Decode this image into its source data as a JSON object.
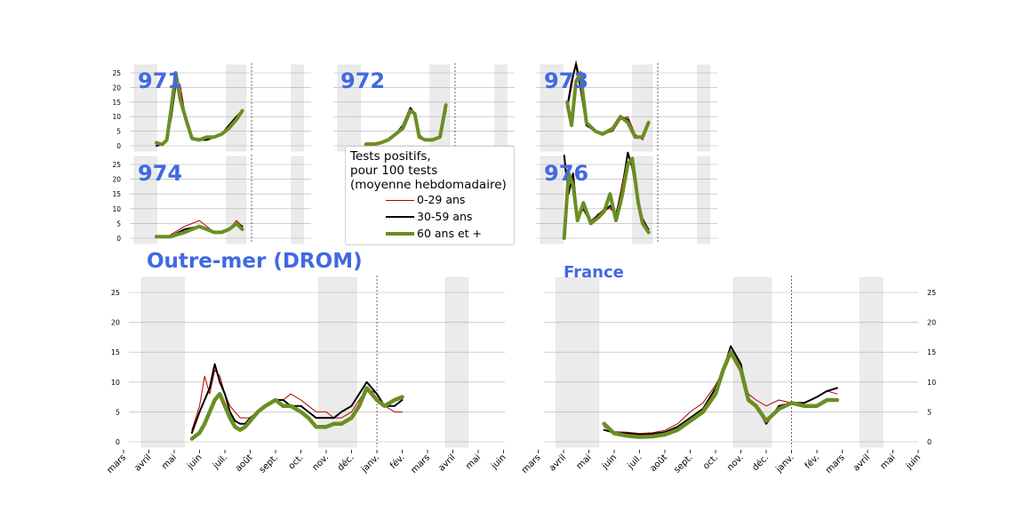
{
  "legend": {
    "title_lines": [
      "Tests positifs,",
      "pour 100 tests",
      "(moyenne hebdomadaire)"
    ],
    "entries": [
      "0-29 ans",
      "30-59 ans",
      "60 ans et +"
    ]
  },
  "colors": {
    "young": "#b00000",
    "mid": "#000000",
    "old": "#6b8e23",
    "label": "#4169e1",
    "shade": "#ebebeb",
    "grid": "#b0b0b0"
  },
  "chart_data": [
    {
      "type": "line",
      "title": "971",
      "ylim": [
        0,
        27
      ],
      "yticks": [
        0,
        5,
        10,
        15,
        20,
        25
      ],
      "series": [
        {
          "name": "0-29 ans",
          "x": [
            5.6,
            6,
            6.3,
            6.6,
            6.9,
            7.2,
            7.6,
            8,
            8.5,
            9,
            9.5,
            10,
            10.5,
            11,
            11.4
          ],
          "values": [
            0,
            0.5,
            3,
            9,
            22,
            21,
            9,
            3,
            2,
            3,
            3,
            4,
            7,
            9,
            12
          ]
        },
        {
          "name": "30-59 ans",
          "x": [
            5.6,
            6,
            6.3,
            6.6,
            6.9,
            7.2,
            7.6,
            8,
            8.5,
            9,
            9.5,
            10,
            10.5,
            11,
            11.4
          ],
          "values": [
            0,
            0.5,
            2,
            10,
            21,
            18,
            8,
            2.5,
            2,
            2,
            3,
            4,
            7,
            10,
            12
          ]
        },
        {
          "name": "60 ans et +",
          "x": [
            5.6,
            6,
            6.3,
            6.6,
            6.9,
            7.2,
            7.6,
            8,
            8.5,
            9,
            9.5,
            10,
            10.5,
            11,
            11.4
          ],
          "values": [
            1,
            0.5,
            2,
            13,
            25,
            16,
            9,
            2.5,
            2,
            3,
            3,
            4,
            6,
            9,
            12
          ]
        }
      ]
    },
    {
      "type": "line",
      "title": "972",
      "ylim": [
        0,
        27
      ],
      "yticks": [
        0,
        5,
        10,
        15,
        20,
        25
      ],
      "series": [
        {
          "name": "0-29 ans",
          "x": [
            6,
            6.5,
            7,
            7.5,
            8,
            8.5,
            9,
            9.3,
            9.6,
            10,
            10.5,
            11,
            11.4
          ],
          "values": [
            1,
            1,
            1,
            2,
            4,
            7,
            12,
            11,
            4,
            2,
            2,
            3,
            13
          ]
        },
        {
          "name": "30-59 ans",
          "x": [
            6,
            6.5,
            7,
            7.5,
            8,
            8.5,
            9,
            9.3,
            9.6,
            10,
            10.5,
            11,
            11.4
          ],
          "values": [
            0.5,
            0.5,
            1,
            2,
            4,
            7,
            13,
            11,
            3,
            2,
            2,
            3,
            12
          ]
        },
        {
          "name": "60 ans et +",
          "x": [
            6,
            6.5,
            7,
            7.5,
            8,
            8.5,
            9,
            9.3,
            9.6,
            10,
            10.5,
            11,
            11.4
          ],
          "values": [
            0.5,
            0.5,
            1,
            2,
            4,
            6,
            12,
            11,
            3,
            2,
            2,
            3,
            14
          ]
        }
      ]
    },
    {
      "type": "line",
      "title": "973",
      "ylim": [
        0,
        27
      ],
      "yticks": [
        0,
        5,
        10,
        15,
        20,
        25
      ],
      "series": [
        {
          "name": "0-29 ans",
          "x": [
            5.9,
            6.2,
            6.5,
            6.8,
            7.2,
            7.8,
            8.3,
            9,
            9.5,
            10,
            10.5,
            11,
            11.4
          ],
          "values": [
            12,
            20,
            29,
            22,
            8,
            5,
            4,
            5,
            9,
            10,
            4,
            2,
            8
          ]
        },
        {
          "name": "30-59 ans",
          "x": [
            5.9,
            6.2,
            6.5,
            6.8,
            7.2,
            7.8,
            8.3,
            9,
            9.5,
            10,
            10.5,
            11,
            11.4
          ],
          "values": [
            13,
            22,
            28,
            20,
            7,
            5,
            4,
            6,
            10,
            9,
            3,
            3,
            8
          ]
        },
        {
          "name": "60 ans et +",
          "x": [
            5.9,
            6.2,
            6.5,
            6.8,
            7.2,
            7.8,
            8.3,
            9,
            9.5,
            10,
            10.5,
            11,
            11.4
          ],
          "values": [
            15,
            7,
            22,
            25,
            8,
            5,
            4,
            6,
            10,
            8,
            3,
            3,
            8
          ]
        }
      ]
    },
    {
      "type": "line",
      "title": "974",
      "ylim": [
        0,
        27
      ],
      "yticks": [
        0,
        5,
        10,
        15,
        20,
        25
      ],
      "series": [
        {
          "name": "0-29 ans",
          "x": [
            5.6,
            6.5,
            7.5,
            8.5,
            9,
            9.5,
            10,
            10.5,
            11,
            11.4
          ],
          "values": [
            0.5,
            1,
            4,
            6,
            4,
            2,
            2,
            3,
            6,
            4
          ]
        },
        {
          "name": "30-59 ans",
          "x": [
            5.6,
            6.5,
            7.5,
            8.5,
            9,
            9.5,
            10,
            10.5,
            11,
            11.4
          ],
          "values": [
            0.5,
            0.5,
            3,
            4,
            3,
            2,
            2,
            3,
            5,
            4
          ]
        },
        {
          "name": "60 ans et +",
          "x": [
            5.6,
            6.5,
            7.5,
            8.5,
            9,
            9.5,
            10,
            10.5,
            11,
            11.4
          ],
          "values": [
            0.5,
            0.5,
            2,
            4,
            3,
            2,
            2,
            3,
            5,
            3
          ]
        }
      ]
    },
    {
      "type": "line",
      "title": "976",
      "ylim": [
        0,
        27
      ],
      "yticks": [
        0,
        5,
        10,
        15,
        20,
        25
      ],
      "series": [
        {
          "name": "0-29 ans",
          "x": [
            5.7,
            6,
            6.3,
            6.6,
            7,
            7.5,
            8,
            8.4,
            8.8,
            9.2,
            9.6,
            10,
            10.3,
            10.7,
            11,
            11.4
          ],
          "values": [
            25,
            15,
            20,
            8,
            10,
            6,
            8,
            10,
            10,
            8,
            18,
            28,
            25,
            14,
            7,
            3
          ]
        },
        {
          "name": "30-59 ans",
          "x": [
            5.7,
            6,
            6.3,
            6.6,
            7,
            7.5,
            8,
            8.4,
            8.8,
            9.2,
            9.6,
            10,
            10.3,
            10.7,
            11,
            11.4
          ],
          "values": [
            28,
            15,
            22,
            7,
            10,
            5,
            8,
            9,
            11,
            8,
            16,
            29,
            24,
            12,
            6,
            3
          ]
        },
        {
          "name": "60 ans et +",
          "x": [
            5.7,
            6,
            6.3,
            6.6,
            7,
            7.5,
            8,
            8.4,
            8.8,
            9.2,
            9.6,
            10,
            10.3,
            10.7,
            11,
            11.4
          ],
          "values": [
            0,
            22,
            18,
            6,
            12,
            5,
            7,
            9,
            15,
            6,
            14,
            25,
            27,
            12,
            5,
            2
          ]
        }
      ]
    },
    {
      "type": "line",
      "title": "Outre-mer (DROM)",
      "ylim": [
        0,
        27
      ],
      "yticks": [
        0,
        5,
        10,
        15,
        20,
        25
      ],
      "series": [
        {
          "name": "0-29 ans",
          "x": [
            2.7,
            3,
            3.2,
            3.4,
            3.6,
            3.8,
            4,
            4.2,
            4.4,
            4.6,
            4.8,
            5,
            5.3,
            5.6,
            6,
            6.3,
            6.6,
            7,
            7.3,
            7.6,
            8,
            8.3,
            8.6,
            9,
            9.3,
            9.6,
            10,
            10.3,
            10.7,
            11
          ],
          "values": [
            2,
            6,
            11,
            8,
            12,
            11,
            8,
            6,
            5,
            4,
            4,
            4,
            5,
            6,
            7,
            7,
            8,
            7,
            6,
            5,
            5,
            4,
            4,
            5,
            7,
            9,
            8,
            6,
            5,
            5
          ]
        },
        {
          "name": "30-59 ans",
          "x": [
            2.7,
            3,
            3.2,
            3.4,
            3.6,
            3.8,
            4,
            4.2,
            4.4,
            4.6,
            4.8,
            5,
            5.3,
            5.6,
            6,
            6.3,
            6.6,
            7,
            7.3,
            7.6,
            8,
            8.3,
            8.6,
            9,
            9.3,
            9.6,
            10,
            10.3,
            10.7,
            11
          ],
          "values": [
            1.5,
            5,
            7,
            9,
            13,
            10,
            8,
            5,
            3.5,
            3,
            3,
            4,
            5,
            6,
            7,
            7,
            6,
            6,
            5,
            4,
            4,
            4,
            5,
            6,
            8,
            10,
            8,
            6,
            6,
            7
          ]
        },
        {
          "name": "60 ans et +",
          "x": [
            2.7,
            3,
            3.2,
            3.4,
            3.6,
            3.8,
            4,
            4.2,
            4.4,
            4.6,
            4.8,
            5,
            5.3,
            5.6,
            6,
            6.3,
            6.6,
            7,
            7.3,
            7.6,
            8,
            8.3,
            8.6,
            9,
            9.3,
            9.6,
            10,
            10.3,
            10.7,
            11
          ],
          "values": [
            0.5,
            1.5,
            3,
            5,
            7,
            8,
            6,
            4,
            2.5,
            2,
            2.5,
            3.5,
            5,
            6,
            7,
            6,
            6,
            5,
            4,
            2.5,
            2.5,
            3,
            3,
            4,
            6,
            9,
            7,
            6,
            7,
            7.5
          ]
        }
      ]
    },
    {
      "type": "line",
      "title": "France",
      "ylim": [
        0,
        27
      ],
      "yticks": [
        0,
        5,
        10,
        15,
        20,
        25
      ],
      "series": [
        {
          "name": "0-29 ans",
          "x": [
            2.6,
            3,
            3.5,
            4,
            4.5,
            5,
            5.5,
            6,
            6.5,
            7,
            7.3,
            7.6,
            8,
            8.3,
            8.6,
            9,
            9.5,
            10,
            10.5,
            11,
            11.4,
            11.8
          ],
          "values": [
            2.5,
            1.7,
            1.6,
            1.4,
            1.5,
            1.9,
            3,
            5,
            6.5,
            9.5,
            12,
            15,
            13,
            8,
            7,
            6,
            7,
            6.5,
            6.5,
            7.5,
            8.5,
            8
          ]
        },
        {
          "name": "30-59 ans",
          "x": [
            2.6,
            3,
            3.5,
            4,
            4.5,
            5,
            5.5,
            6,
            6.5,
            7,
            7.3,
            7.6,
            8,
            8.3,
            8.6,
            9,
            9.5,
            10,
            10.5,
            11,
            11.4,
            11.8
          ],
          "values": [
            2,
            1.5,
            1.4,
            1.2,
            1.3,
            1.6,
            2.5,
            4,
            5.5,
            9,
            12,
            16,
            13,
            7,
            6,
            3,
            6,
            6.5,
            6.5,
            7.5,
            8.5,
            9
          ]
        },
        {
          "name": "60 ans et +",
          "x": [
            2.6,
            3,
            3.5,
            4,
            4.5,
            5,
            5.5,
            6,
            6.5,
            7,
            7.3,
            7.6,
            8,
            8.3,
            8.6,
            9,
            9.5,
            10,
            10.5,
            11,
            11.4,
            11.8
          ],
          "values": [
            3,
            1.4,
            1,
            0.8,
            0.9,
            1.2,
            2,
            3.5,
            5,
            8,
            12,
            15,
            12,
            7,
            6,
            3.5,
            5.5,
            6.5,
            6,
            6,
            7,
            7
          ]
        }
      ]
    }
  ],
  "x_tick_labels": [
    "mars",
    "avril",
    "mai",
    "juin",
    "juil.",
    "août",
    "sept.",
    "oct.",
    "nov.",
    "déc.",
    "janv.",
    "fév.",
    "mars",
    "avril",
    "mai",
    "juin"
  ],
  "x_range": [
    0,
    15
  ]
}
